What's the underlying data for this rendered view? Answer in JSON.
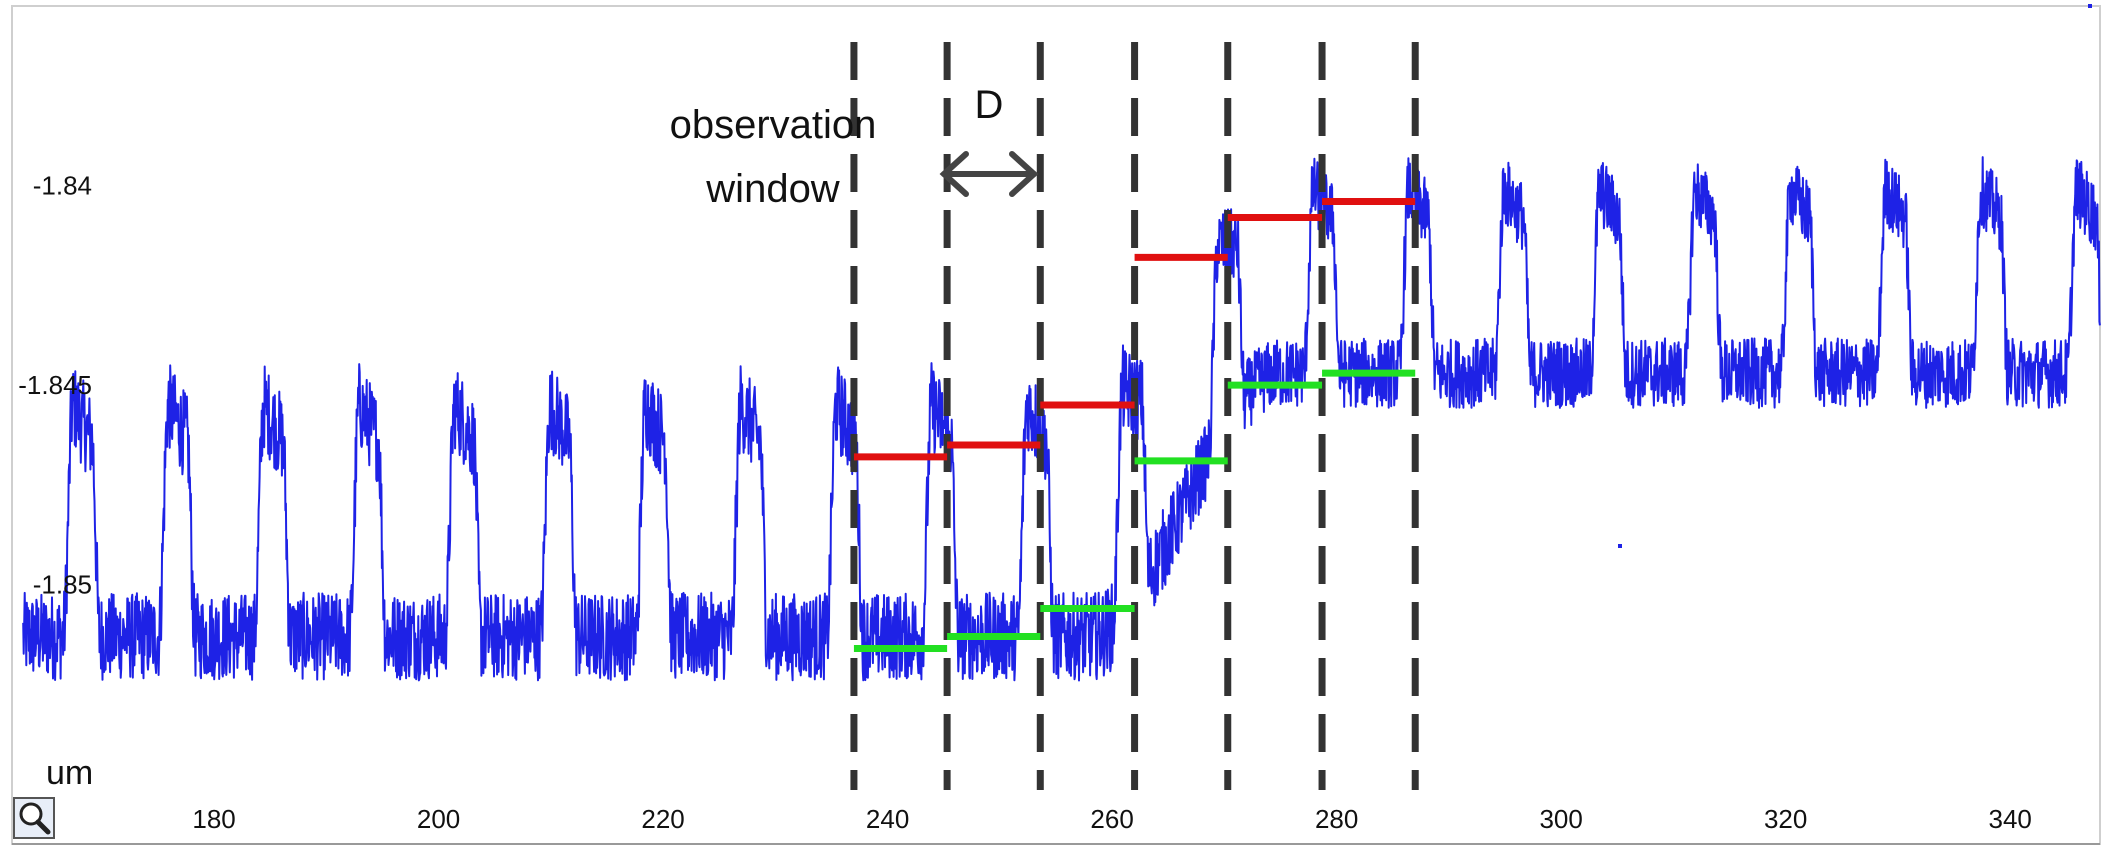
{
  "chart_data": {
    "type": "line",
    "x_unit_label": "um",
    "xlim": [
      162,
      348
    ],
    "ylim": [
      -1.8565,
      -1.8355
    ],
    "x_ticks": [
      "180",
      "200",
      "220",
      "240",
      "260",
      "280",
      "300",
      "320",
      "340"
    ],
    "y_ticks": [
      "-1.84",
      "-1.845",
      "-1.85"
    ],
    "x_tick_values": [
      180,
      200,
      220,
      240,
      260,
      280,
      300,
      320,
      340
    ],
    "y_tick_values": [
      -1.84,
      -1.845,
      -1.85
    ],
    "grid": false,
    "signal": {
      "color": "#1e22e6",
      "period": 8.5,
      "x_start": 163,
      "x_end": 348,
      "low_before": -1.8513,
      "high_before": -1.8455,
      "low_after": -1.8447,
      "high_after": -1.8401,
      "transition_start": 258,
      "transition_end": 275
    },
    "window_bounds": [
      237,
      245.3,
      253.6,
      262,
      270.3,
      278.7,
      287
    ],
    "upper_levels": {
      "color": "#e01010",
      "values": [
        -1.8468,
        -1.8465,
        -1.8455,
        -1.8418,
        -1.8408,
        -1.8404
      ]
    },
    "lower_levels": {
      "color": "#22e022",
      "values": [
        -1.8516,
        -1.8513,
        -1.8506,
        -1.8469,
        -1.845,
        -1.8447
      ]
    },
    "annotations": {
      "window_label_line1": "observation",
      "window_label_line2": "window",
      "d_label": "D"
    },
    "colors": {
      "dashed_lines": "#333333",
      "arrow": "#444444"
    }
  },
  "toolbar": {
    "zoom_icon": "magnifier-icon"
  }
}
